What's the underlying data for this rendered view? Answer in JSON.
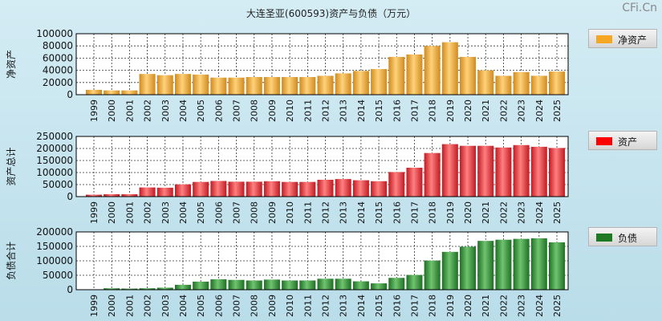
{
  "title": "大连圣亚(600593)资产与负债（万元）",
  "watermark": "CFi.Cn",
  "chart_data": [
    {
      "type": "bar",
      "ylabel": "净资产",
      "legend": "净资产",
      "color": "#f0a23a",
      "ylim": [
        0,
        100000
      ],
      "yticks": [
        0,
        20000,
        40000,
        60000,
        80000,
        100000
      ],
      "categories": [
        "1999",
        "2000",
        "2001",
        "2002",
        "2003",
        "2004",
        "2005",
        "2006",
        "2007",
        "2008",
        "2009",
        "2010",
        "2011",
        "2012",
        "2013",
        "2014",
        "2015",
        "2016",
        "2017",
        "2018",
        "2019",
        "2020",
        "2021",
        "2022",
        "2023",
        "2024",
        "2025"
      ],
      "values": [
        8000,
        7000,
        7000,
        34000,
        32000,
        34000,
        33000,
        28000,
        28000,
        29000,
        29000,
        29000,
        29000,
        31000,
        35000,
        39000,
        42000,
        62000,
        66000,
        80000,
        86000,
        62000,
        40000,
        31000,
        37000,
        31000,
        38000
      ]
    },
    {
      "type": "bar",
      "ylabel": "资产总计",
      "legend": "资产",
      "color": "#e8333a",
      "ylim": [
        0,
        250000
      ],
      "yticks": [
        0,
        50000,
        100000,
        150000,
        200000,
        250000
      ],
      "categories": [
        "1999",
        "2000",
        "2001",
        "2002",
        "2003",
        "2004",
        "2005",
        "2006",
        "2007",
        "2008",
        "2009",
        "2010",
        "2011",
        "2012",
        "2013",
        "2014",
        "2015",
        "2016",
        "2017",
        "2018",
        "2019",
        "2020",
        "2021",
        "2022",
        "2023",
        "2024",
        "2025"
      ],
      "values": [
        8000,
        10000,
        10000,
        38000,
        37000,
        51000,
        61000,
        65000,
        62000,
        62000,
        64000,
        61000,
        61000,
        70000,
        73000,
        68000,
        64000,
        102000,
        120000,
        181000,
        218000,
        211000,
        211000,
        204000,
        214000,
        207000,
        202000
      ]
    },
    {
      "type": "bar",
      "ylabel": "负债合计",
      "legend": "负债",
      "color": "#2f8c36",
      "ylim": [
        0,
        200000
      ],
      "yticks": [
        0,
        50000,
        100000,
        150000,
        200000
      ],
      "categories": [
        "1999",
        "2000",
        "2001",
        "2002",
        "2003",
        "2004",
        "2005",
        "2006",
        "2007",
        "2008",
        "2009",
        "2010",
        "2011",
        "2012",
        "2013",
        "2014",
        "2015",
        "2016",
        "2017",
        "2018",
        "2019",
        "2020",
        "2021",
        "2022",
        "2023",
        "2024",
        "2025"
      ],
      "values": [
        1000,
        5000,
        4000,
        5000,
        7000,
        17000,
        28000,
        36000,
        34000,
        32000,
        35000,
        32000,
        32000,
        38000,
        38000,
        29000,
        22000,
        41000,
        51000,
        101000,
        131000,
        149000,
        169000,
        173000,
        176000,
        178000,
        164000
      ]
    }
  ]
}
